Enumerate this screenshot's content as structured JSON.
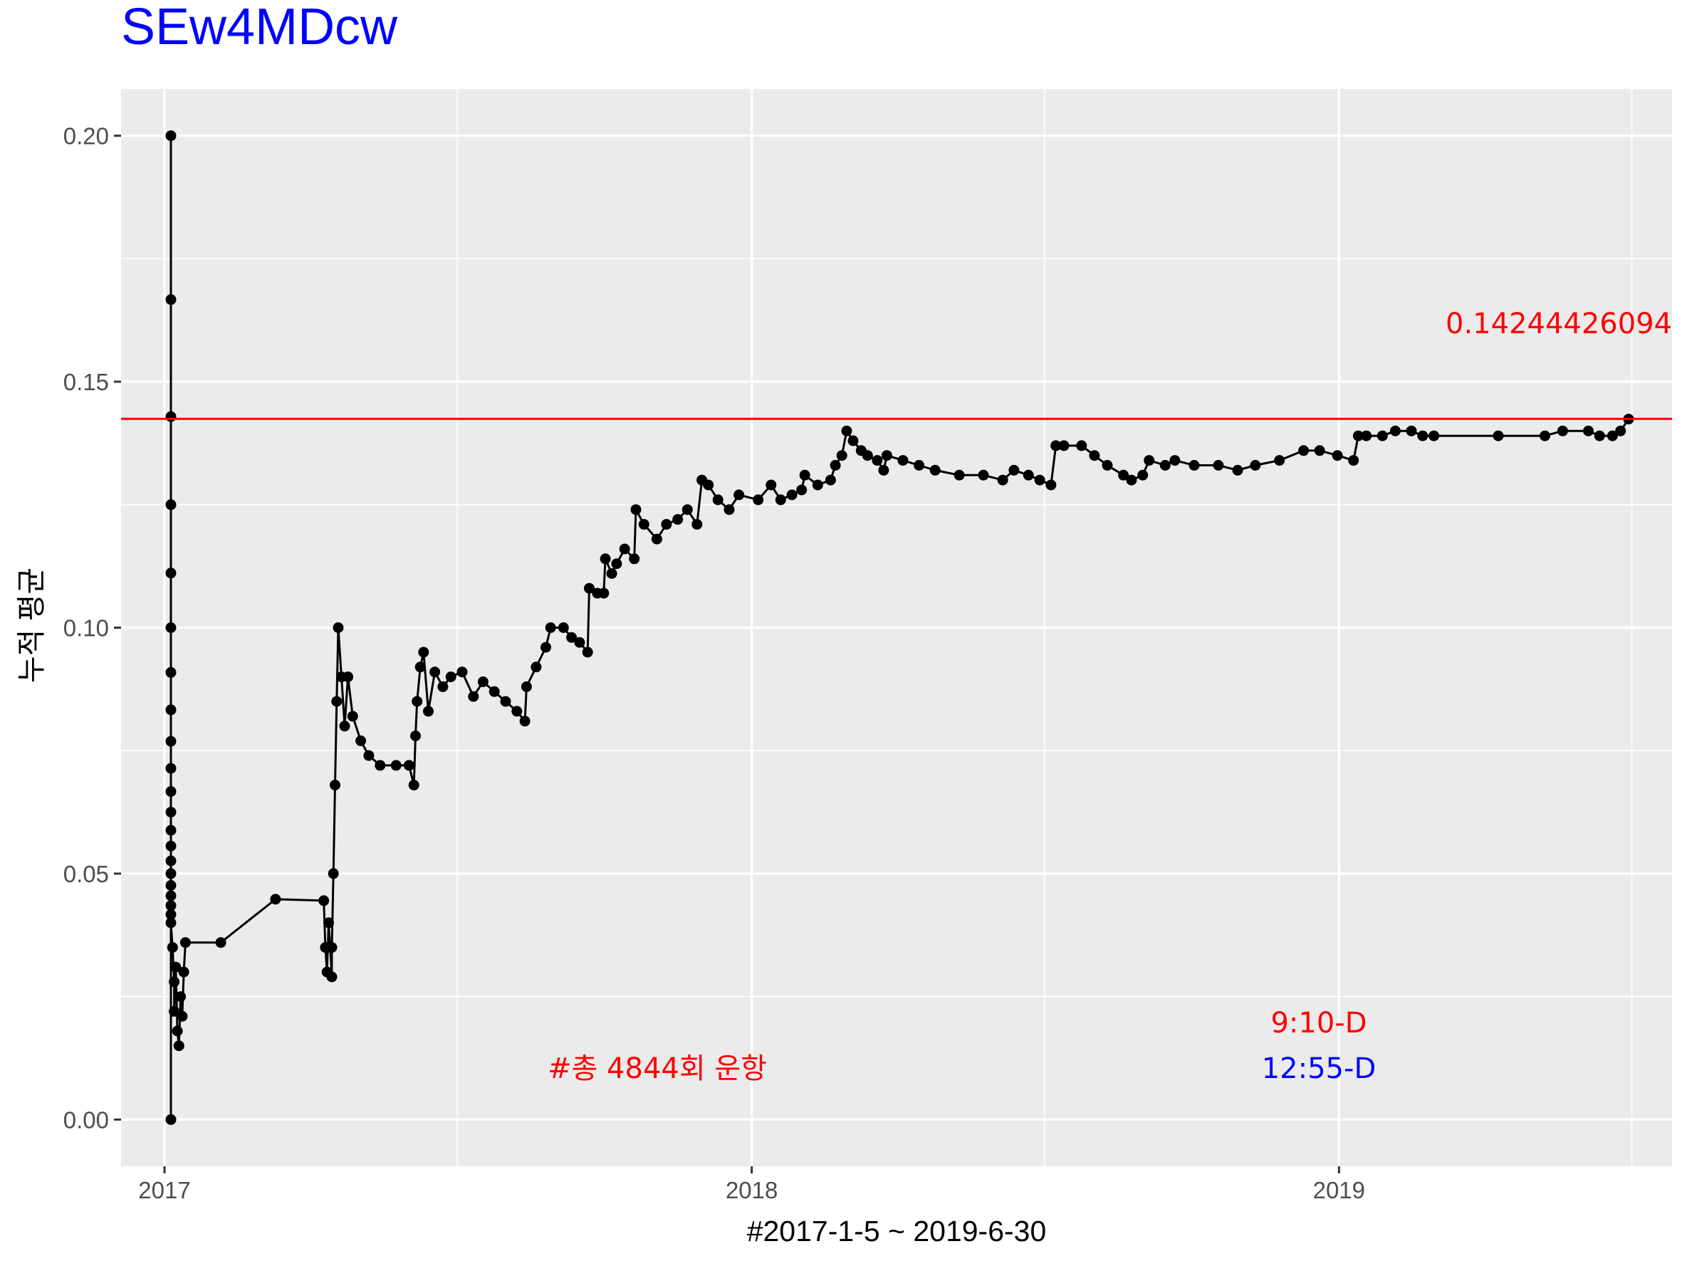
{
  "chart_data": {
    "type": "line",
    "title": "SEw4MDcw",
    "xlabel": "#2017-1-5 ~ 2019-6-30",
    "ylabel": "누적 평균",
    "x_ticks": [
      "2017",
      "2018",
      "2019"
    ],
    "y_ticks": [
      "0.00",
      "0.05",
      "0.10",
      "0.15",
      "0.20"
    ],
    "xlim": [
      "2016-12-05",
      "2019-07-27"
    ],
    "ylim": [
      -0.0095,
      0.2095
    ],
    "grid": true,
    "series": [
      {
        "line_color": "#000000",
        "points": [
          [
            "2017-01-05",
            0.0
          ],
          [
            "2017-01-05",
            0.2
          ],
          [
            "2017-01-05",
            0.1667
          ],
          [
            "2017-01-05",
            0.1429
          ],
          [
            "2017-01-05",
            0.125
          ],
          [
            "2017-01-05",
            0.1111
          ],
          [
            "2017-01-05",
            0.1
          ],
          [
            "2017-01-05",
            0.0909
          ],
          [
            "2017-01-05",
            0.0833
          ],
          [
            "2017-01-05",
            0.0769
          ],
          [
            "2017-01-05",
            0.0714
          ],
          [
            "2017-01-05",
            0.0667
          ],
          [
            "2017-01-05",
            0.0625
          ],
          [
            "2017-01-05",
            0.0588
          ],
          [
            "2017-01-05",
            0.0556
          ],
          [
            "2017-01-05",
            0.0526
          ],
          [
            "2017-01-05",
            0.05
          ],
          [
            "2017-01-05",
            0.0476
          ],
          [
            "2017-01-05",
            0.0455
          ],
          [
            "2017-01-05",
            0.0435
          ],
          [
            "2017-01-05",
            0.0417
          ],
          [
            "2017-01-05",
            0.04
          ],
          [
            "2017-01-06",
            0.035
          ],
          [
            "2017-01-07",
            0.028
          ],
          [
            "2017-01-07",
            0.022
          ],
          [
            "2017-01-08",
            0.031
          ],
          [
            "2017-01-09",
            0.018
          ],
          [
            "2017-01-10",
            0.015
          ],
          [
            "2017-01-11",
            0.025
          ],
          [
            "2017-01-12",
            0.021
          ],
          [
            "2017-01-13",
            0.03
          ],
          [
            "2017-01-14",
            0.036
          ],
          [
            "2017-02-05",
            0.036
          ],
          [
            "2017-03-11",
            0.0448
          ],
          [
            "2017-04-10",
            0.0445
          ],
          [
            "2017-04-11",
            0.035
          ],
          [
            "2017-04-12",
            0.03
          ],
          [
            "2017-04-13",
            0.04
          ],
          [
            "2017-04-14",
            0.035
          ],
          [
            "2017-04-15",
            0.029
          ],
          [
            "2017-04-15",
            0.035
          ],
          [
            "2017-04-16",
            0.05
          ],
          [
            "2017-04-17",
            0.068
          ],
          [
            "2017-04-18",
            0.085
          ],
          [
            "2017-04-19",
            0.1
          ],
          [
            "2017-04-21",
            0.09
          ],
          [
            "2017-04-23",
            0.08
          ],
          [
            "2017-04-25",
            0.09
          ],
          [
            "2017-04-28",
            0.082
          ],
          [
            "2017-05-03",
            0.077
          ],
          [
            "2017-05-08",
            0.074
          ],
          [
            "2017-05-15",
            0.072
          ],
          [
            "2017-05-25",
            0.072
          ],
          [
            "2017-06-02",
            0.072
          ],
          [
            "2017-06-05",
            0.068
          ],
          [
            "2017-06-06",
            0.078
          ],
          [
            "2017-06-07",
            0.085
          ],
          [
            "2017-06-09",
            0.092
          ],
          [
            "2017-06-11",
            0.095
          ],
          [
            "2017-06-14",
            0.083
          ],
          [
            "2017-06-18",
            0.091
          ],
          [
            "2017-06-23",
            0.088
          ],
          [
            "2017-06-28",
            0.09
          ],
          [
            "2017-07-05",
            0.091
          ],
          [
            "2017-07-12",
            0.086
          ],
          [
            "2017-07-18",
            0.089
          ],
          [
            "2017-07-25",
            0.087
          ],
          [
            "2017-08-01",
            0.085
          ],
          [
            "2017-08-08",
            0.083
          ],
          [
            "2017-08-13",
            0.081
          ],
          [
            "2017-08-14",
            0.088
          ],
          [
            "2017-08-20",
            0.092
          ],
          [
            "2017-08-26",
            0.096
          ],
          [
            "2017-08-29",
            0.1
          ],
          [
            "2017-09-06",
            0.1
          ],
          [
            "2017-09-11",
            0.098
          ],
          [
            "2017-09-16",
            0.097
          ],
          [
            "2017-09-21",
            0.095
          ],
          [
            "2017-09-22",
            0.108
          ],
          [
            "2017-09-27",
            0.107
          ],
          [
            "2017-10-01",
            0.107
          ],
          [
            "2017-10-02",
            0.114
          ],
          [
            "2017-10-06",
            0.111
          ],
          [
            "2017-10-09",
            0.113
          ],
          [
            "2017-10-14",
            0.116
          ],
          [
            "2017-10-20",
            0.114
          ],
          [
            "2017-10-21",
            0.124
          ],
          [
            "2017-10-26",
            0.121
          ],
          [
            "2017-11-03",
            0.118
          ],
          [
            "2017-11-09",
            0.121
          ],
          [
            "2017-11-16",
            0.122
          ],
          [
            "2017-11-22",
            0.124
          ],
          [
            "2017-11-28",
            0.121
          ],
          [
            "2017-12-01",
            0.13
          ],
          [
            "2017-12-05",
            0.129
          ],
          [
            "2017-12-11",
            0.126
          ],
          [
            "2017-12-18",
            0.124
          ],
          [
            "2017-12-24",
            0.127
          ],
          [
            "2018-01-05",
            0.126
          ],
          [
            "2018-01-13",
            0.129
          ],
          [
            "2018-01-19",
            0.126
          ],
          [
            "2018-01-26",
            0.127
          ],
          [
            "2018-02-01",
            0.128
          ],
          [
            "2018-02-03",
            0.131
          ],
          [
            "2018-02-11",
            0.129
          ],
          [
            "2018-02-19",
            0.13
          ],
          [
            "2018-02-22",
            0.133
          ],
          [
            "2018-02-26",
            0.135
          ],
          [
            "2018-03-01",
            0.14
          ],
          [
            "2018-03-05",
            0.138
          ],
          [
            "2018-03-10",
            0.136
          ],
          [
            "2018-03-14",
            0.135
          ],
          [
            "2018-03-20",
            0.134
          ],
          [
            "2018-03-24",
            0.132
          ],
          [
            "2018-03-26",
            0.135
          ],
          [
            "2018-04-05",
            0.134
          ],
          [
            "2018-04-15",
            0.133
          ],
          [
            "2018-04-25",
            0.132
          ],
          [
            "2018-05-10",
            0.131
          ],
          [
            "2018-05-25",
            0.131
          ],
          [
            "2018-06-06",
            0.13
          ],
          [
            "2018-06-13",
            0.132
          ],
          [
            "2018-06-22",
            0.131
          ],
          [
            "2018-06-29",
            0.13
          ],
          [
            "2018-07-06",
            0.129
          ],
          [
            "2018-07-09",
            0.137
          ],
          [
            "2018-07-14",
            0.137
          ],
          [
            "2018-07-25",
            0.137
          ],
          [
            "2018-08-02",
            0.135
          ],
          [
            "2018-08-10",
            0.133
          ],
          [
            "2018-08-20",
            0.131
          ],
          [
            "2018-08-25",
            0.13
          ],
          [
            "2018-09-01",
            0.131
          ],
          [
            "2018-09-05",
            0.134
          ],
          [
            "2018-09-15",
            0.133
          ],
          [
            "2018-09-21",
            0.134
          ],
          [
            "2018-10-03",
            0.133
          ],
          [
            "2018-10-18",
            0.133
          ],
          [
            "2018-10-30",
            0.132
          ],
          [
            "2018-11-10",
            0.133
          ],
          [
            "2018-11-25",
            0.134
          ],
          [
            "2018-12-10",
            0.136
          ],
          [
            "2018-12-20",
            0.136
          ],
          [
            "2018-12-31",
            0.135
          ],
          [
            "2019-01-10",
            0.134
          ],
          [
            "2019-01-13",
            0.139
          ],
          [
            "2019-01-18",
            0.139
          ],
          [
            "2019-01-28",
            0.139
          ],
          [
            "2019-02-05",
            0.14
          ],
          [
            "2019-02-15",
            0.14
          ],
          [
            "2019-02-22",
            0.139
          ],
          [
            "2019-03-01",
            0.139
          ],
          [
            "2019-04-10",
            0.139
          ],
          [
            "2019-05-09",
            0.139
          ],
          [
            "2019-05-20",
            0.14
          ],
          [
            "2019-06-05",
            0.14
          ],
          [
            "2019-06-12",
            0.139
          ],
          [
            "2019-06-20",
            0.139
          ],
          [
            "2019-06-25",
            0.14
          ],
          [
            "2019-06-30",
            0.1424
          ]
        ]
      }
    ],
    "reference_line": {
      "y": 0.14244426094,
      "color": "#ff0000",
      "label": "0.14244426094"
    },
    "annotations": [
      {
        "text": "#총 4844회 운항",
        "color": "#ff0000"
      },
      {
        "text": "9:10-D",
        "color": "#ff0000"
      },
      {
        "text": "12:55-D",
        "color": "#0000ff"
      }
    ],
    "colors": {
      "panel": "#ebebeb",
      "grid": "#ffffff",
      "title": "#0000ff"
    }
  }
}
